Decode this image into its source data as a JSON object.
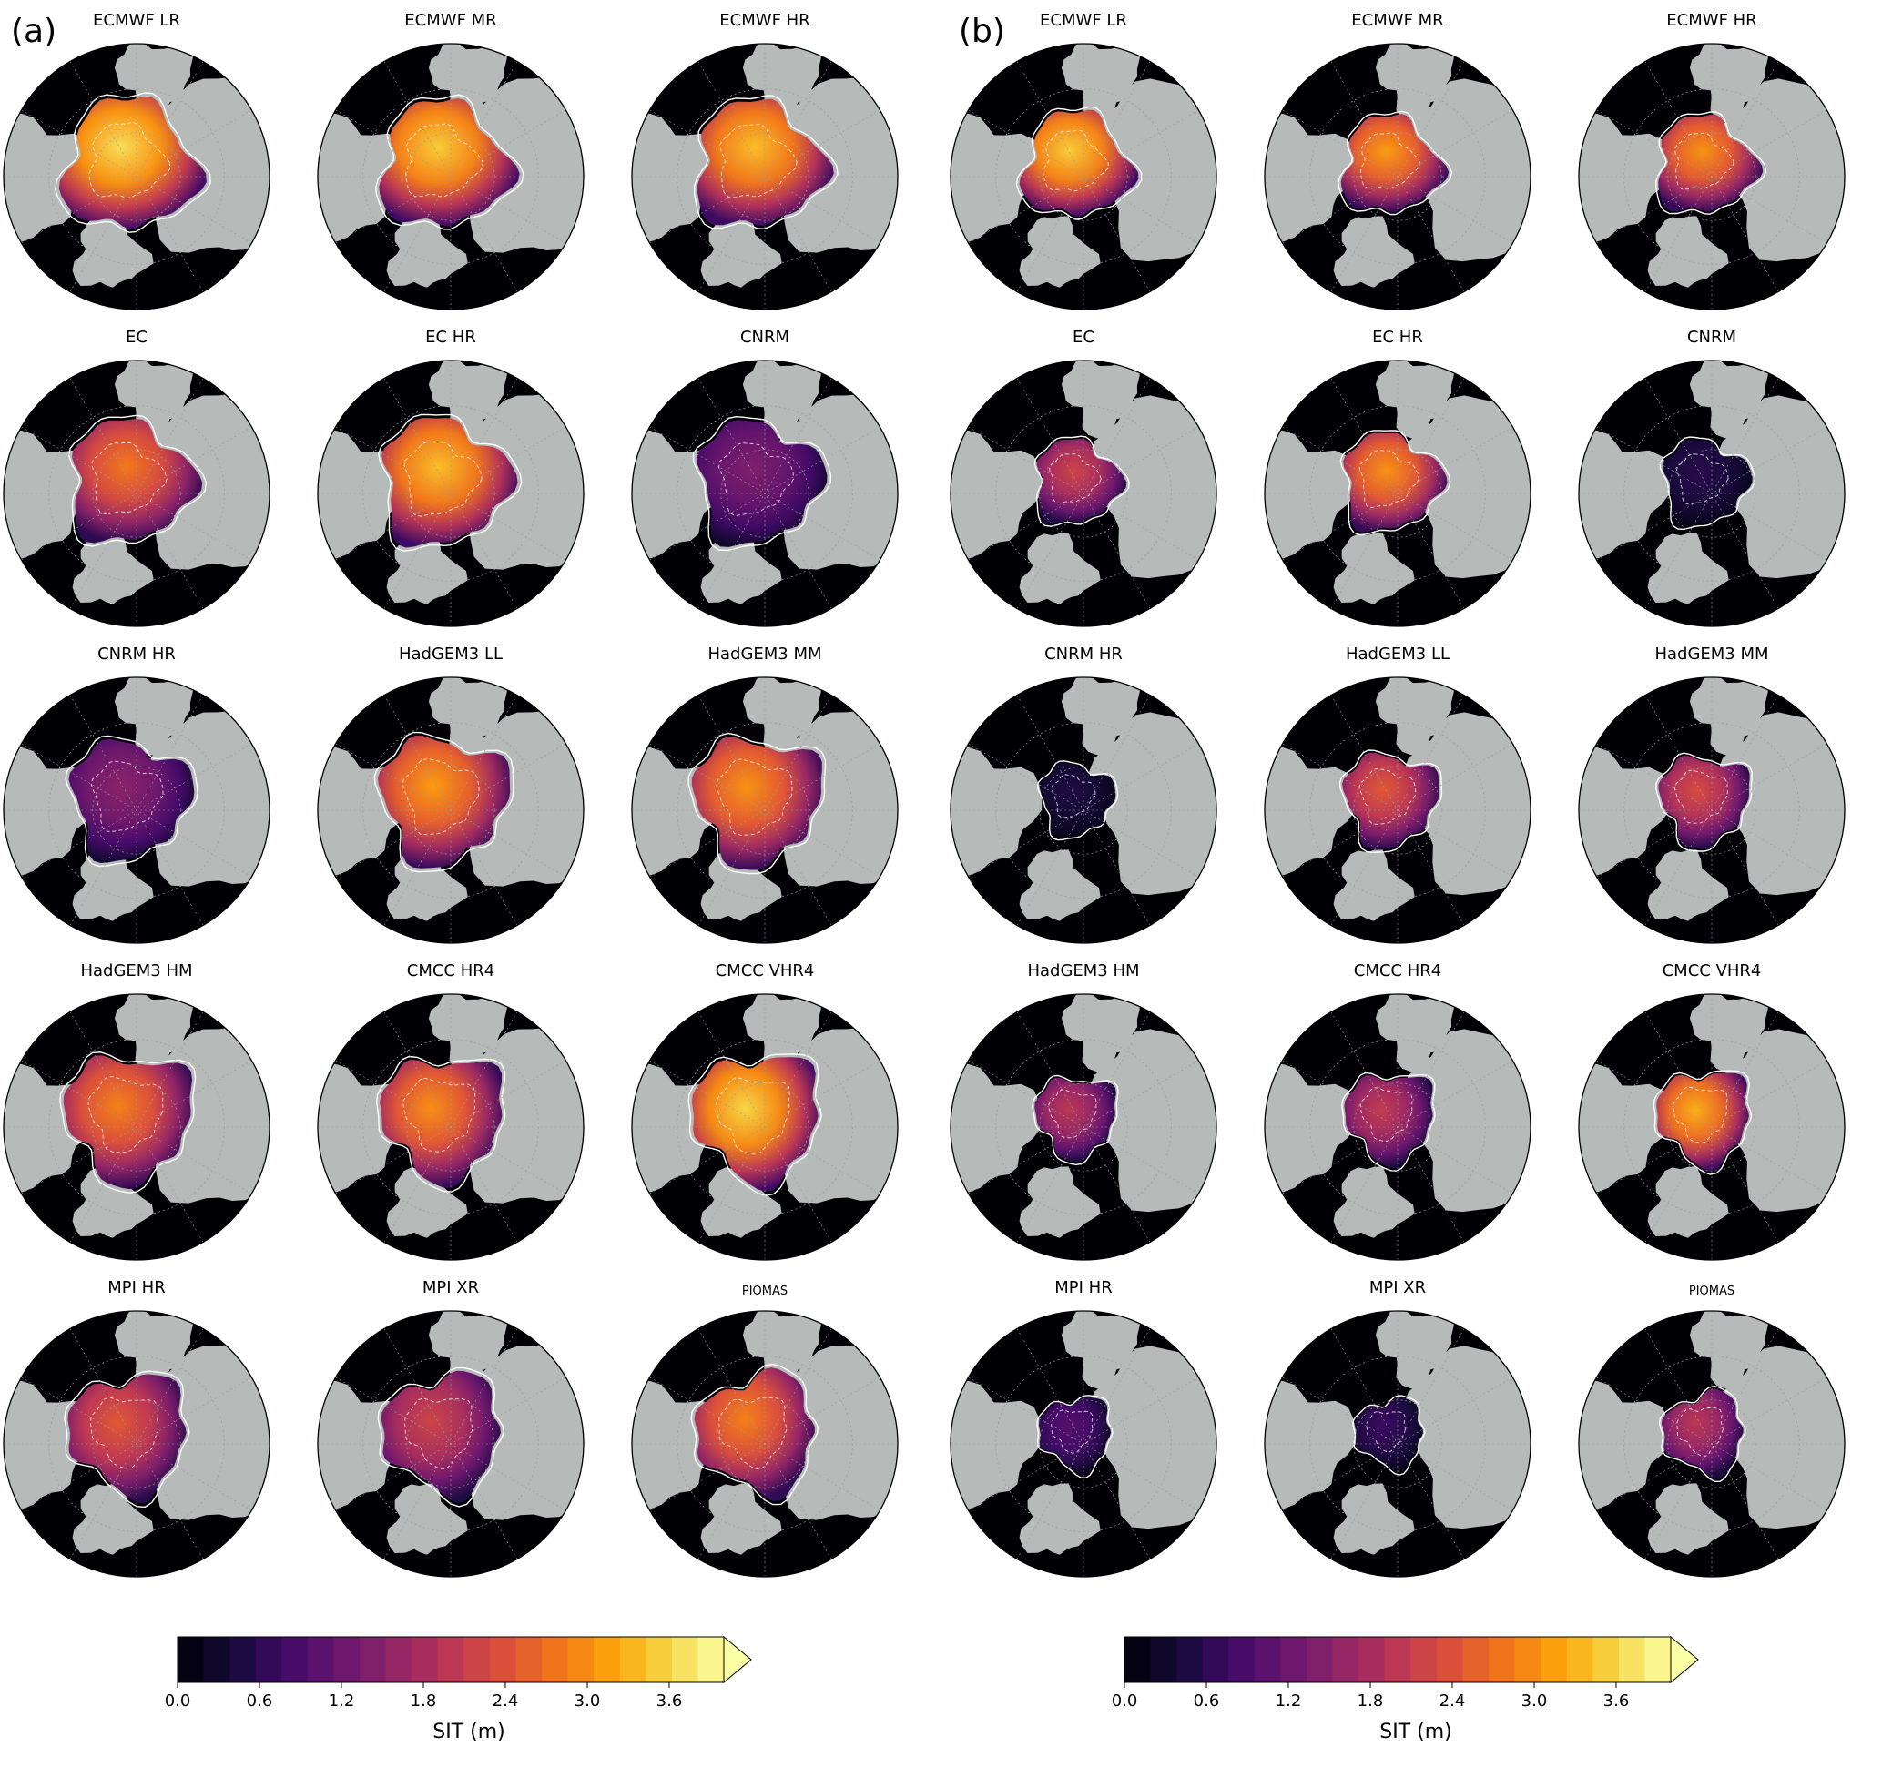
{
  "figure": {
    "panels": [
      {
        "letter": "(a)",
        "maps": [
          {
            "title": "ECMWF LR",
            "intensity": 0.92,
            "extent": 0.62
          },
          {
            "title": "ECMWF MR",
            "intensity": 0.88,
            "extent": 0.6
          },
          {
            "title": "ECMWF HR",
            "intensity": 0.85,
            "extent": 0.6
          },
          {
            "title": "EC",
            "intensity": 0.7,
            "extent": 0.58
          },
          {
            "title": "EC HR",
            "intensity": 0.85,
            "extent": 0.6
          },
          {
            "title": "CNRM",
            "intensity": 0.35,
            "extent": 0.58
          },
          {
            "title": "CNRM HR",
            "intensity": 0.38,
            "extent": 0.56
          },
          {
            "title": "HadGEM3 LL",
            "intensity": 0.78,
            "extent": 0.6
          },
          {
            "title": "HadGEM3 MM",
            "intensity": 0.76,
            "extent": 0.6
          },
          {
            "title": "HadGEM3 HM",
            "intensity": 0.72,
            "extent": 0.6
          },
          {
            "title": "CMCC HR4",
            "intensity": 0.75,
            "extent": 0.58
          },
          {
            "title": "CMCC VHR4",
            "intensity": 0.9,
            "extent": 0.6
          },
          {
            "title": "MPI HR",
            "intensity": 0.62,
            "extent": 0.56
          },
          {
            "title": "MPI XR",
            "intensity": 0.55,
            "extent": 0.56
          },
          {
            "title": "PIOMAS",
            "intensity": 0.72,
            "extent": 0.56,
            "small_title": true
          }
        ]
      },
      {
        "letter": "(b)",
        "maps": [
          {
            "title": "ECMWF LR",
            "intensity": 0.88,
            "extent": 0.5
          },
          {
            "title": "ECMWF MR",
            "intensity": 0.78,
            "extent": 0.46
          },
          {
            "title": "ECMWF HR",
            "intensity": 0.76,
            "extent": 0.46
          },
          {
            "title": "EC",
            "intensity": 0.55,
            "extent": 0.4
          },
          {
            "title": "EC HR",
            "intensity": 0.76,
            "extent": 0.46
          },
          {
            "title": "CNRM",
            "intensity": 0.14,
            "extent": 0.4
          },
          {
            "title": "CNRM HR",
            "intensity": 0.12,
            "extent": 0.34
          },
          {
            "title": "HadGEM3 LL",
            "intensity": 0.62,
            "extent": 0.44
          },
          {
            "title": "HadGEM3 MM",
            "intensity": 0.58,
            "extent": 0.42
          },
          {
            "title": "HadGEM3 HM",
            "intensity": 0.5,
            "extent": 0.38
          },
          {
            "title": "CMCC HR4",
            "intensity": 0.52,
            "extent": 0.42
          },
          {
            "title": "CMCC VHR4",
            "intensity": 0.82,
            "extent": 0.44
          },
          {
            "title": "MPI HR",
            "intensity": 0.25,
            "extent": 0.34
          },
          {
            "title": "MPI XR",
            "intensity": 0.18,
            "extent": 0.32
          },
          {
            "title": "PIOMAS",
            "intensity": 0.5,
            "extent": 0.38,
            "small_title": true
          }
        ]
      }
    ],
    "colorbar": {
      "label": "SIT (m)",
      "min": 0.0,
      "max": 4.0,
      "ticks": [
        "0.0",
        "0.6",
        "1.2",
        "1.8",
        "2.4",
        "3.0",
        "3.6"
      ],
      "tick_values": [
        0.0,
        0.6,
        1.2,
        1.8,
        2.4,
        3.0,
        3.6
      ],
      "n_levels": 21,
      "extend": "max",
      "colormap": [
        "#000004",
        "#160b39",
        "#420a68",
        "#6a176e",
        "#932667",
        "#bc3754",
        "#dd513a",
        "#f37819",
        "#fca50a",
        "#f6d746",
        "#fcffa4"
      ]
    },
    "colors": {
      "land": "#b6bab8",
      "ocean": "#000004",
      "contour": "#ffffff"
    }
  }
}
